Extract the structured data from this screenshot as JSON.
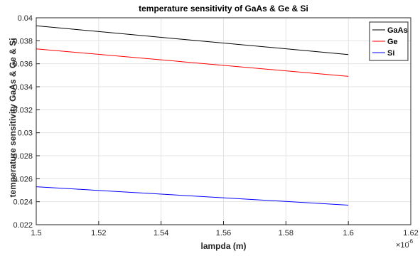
{
  "chart_data": {
    "type": "line",
    "title": "temperature sensitivity  of GaAs & Ge & Si",
    "xlabel": "lampda (m)",
    "ylabel": "temperature sensitivity GaAs & Ge & Si",
    "x_multiplier": "×10",
    "x_exponent": "-6",
    "xlim": [
      1.5,
      1.62
    ],
    "ylim": [
      0.022,
      0.04
    ],
    "x_ticks": [
      1.5,
      1.52,
      1.54,
      1.56,
      1.58,
      1.6,
      1.62
    ],
    "x_tick_labels": [
      "1.5",
      "1.52",
      "1.54",
      "1.56",
      "1.58",
      "1.6",
      "1.62"
    ],
    "y_ticks": [
      0.022,
      0.024,
      0.026,
      0.028,
      0.03,
      0.032,
      0.034,
      0.036,
      0.038,
      0.04
    ],
    "y_tick_labels": [
      "0.022",
      "0.024",
      "0.026",
      "0.028",
      "0.03",
      "0.032",
      "0.034",
      "0.036",
      "0.038",
      "0.04"
    ],
    "grid": true,
    "legend_position": "top-right",
    "series": [
      {
        "name": "GaAs",
        "color": "#000000",
        "x": [
          1.5,
          1.6
        ],
        "y": [
          0.0393,
          0.0368
        ]
      },
      {
        "name": "Ge",
        "color": "#ff0000",
        "x": [
          1.5,
          1.6
        ],
        "y": [
          0.0373,
          0.0349
        ]
      },
      {
        "name": "Si",
        "color": "#0000ff",
        "x": [
          1.5,
          1.6
        ],
        "y": [
          0.0253,
          0.0237
        ]
      }
    ]
  }
}
